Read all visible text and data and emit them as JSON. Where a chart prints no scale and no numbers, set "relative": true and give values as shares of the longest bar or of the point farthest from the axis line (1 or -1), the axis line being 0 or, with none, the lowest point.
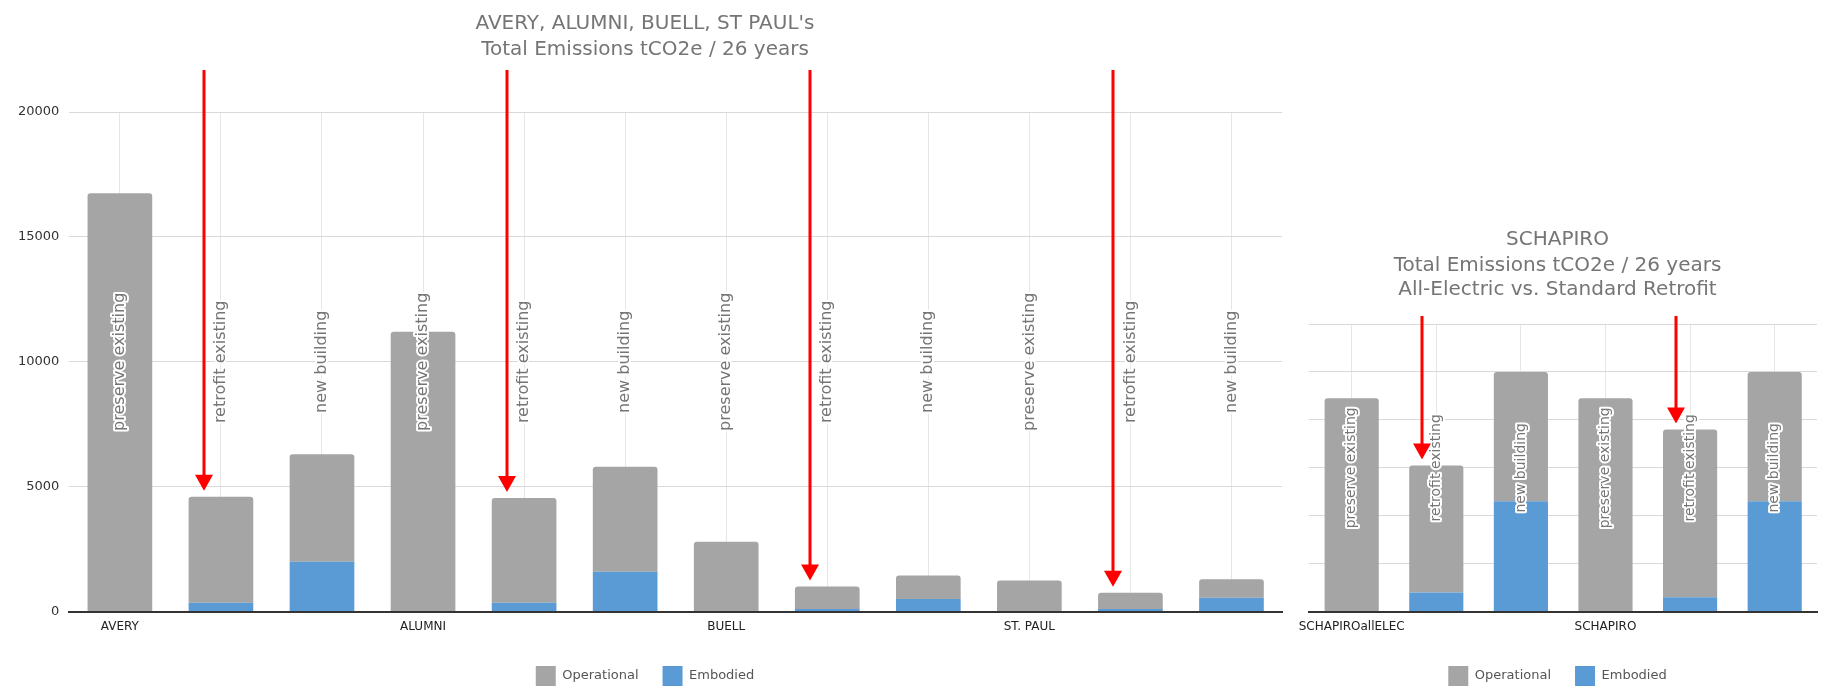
{
  "chart_data": [
    {
      "type": "bar",
      "title": "AVERY, ALUMNI, BUELL, ST PAUL's",
      "subtitle": "Total Emissions tCO2e / 26 years",
      "categories": [
        "AVERY",
        null,
        null,
        "ALUMNI",
        null,
        null,
        "BUELL",
        null,
        null,
        "ST. PAUL",
        null,
        null
      ],
      "stacked": true,
      "series": [
        {
          "name": "Embodied",
          "color": "#5b9bd5",
          "values": [
            0,
            350,
            2000,
            0,
            350,
            1600,
            0,
            100,
            500,
            0,
            100,
            550
          ]
        },
        {
          "name": "Operational",
          "color": "#a5a5a5",
          "values": [
            16750,
            4250,
            4300,
            11200,
            4200,
            4200,
            2800,
            900,
            950,
            1250,
            650,
            750
          ]
        }
      ],
      "ylim": [
        0,
        20000
      ],
      "yticks": [
        0,
        5000,
        10000,
        15000,
        20000
      ],
      "grid": true,
      "legend": "bottom",
      "annotations": [
        "preserve existing",
        "retrofit existing",
        "new building",
        "preserve existing",
        "retrofit existing",
        "new building",
        "preserve existing",
        "retrofit existing",
        "new building",
        "preserve existing",
        "retrofit existing",
        "new building"
      ]
    },
    {
      "type": "bar",
      "title": "SCHAPIRO",
      "subtitle": "Total Emissions tCO2e / 26 years\nAll-Electric vs. Standard Retrofit",
      "categories": [
        "SCHAPIROallELEC",
        null,
        null,
        "SCHAPIRO",
        null,
        null
      ],
      "stacked": true,
      "relative": true,
      "series": [
        {
          "name": "Embodied",
          "color": "#5b9bd5",
          "values": [
            0,
            0.08,
            0.46,
            0,
            0.06,
            0.46
          ]
        },
        {
          "name": "Operational",
          "color": "#a5a5a5",
          "values": [
            0.89,
            0.53,
            0.54,
            0.89,
            0.7,
            0.54
          ]
        }
      ],
      "grid": true,
      "legend": "bottom",
      "annotations": [
        "preserve existing",
        "retrofit existing",
        "new building",
        "preserve existing",
        "retrofit existing",
        "new building"
      ]
    }
  ]
}
